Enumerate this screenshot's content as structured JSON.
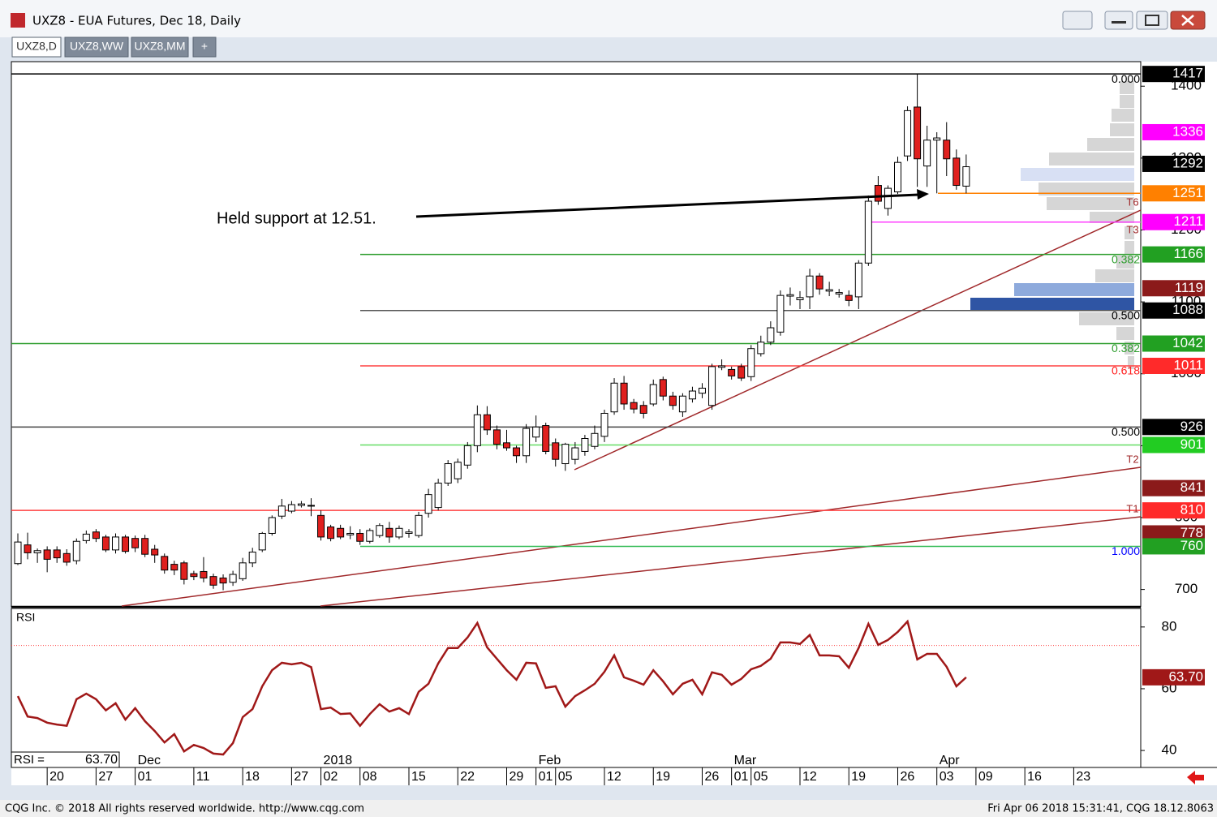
{
  "window": {
    "title": "UXZ8 - EUA Futures, Dec 18, Daily",
    "tabs": [
      "UXZ8,D",
      "UXZ8,WW",
      "UXZ8,MM",
      "+"
    ]
  },
  "chart_data": [
    {
      "type": "candlestick",
      "annotation": "Held support at 12.51.",
      "categories": [
        null,
        null,
        null,
        "20",
        null,
        null,
        null,
        null,
        "27",
        null,
        null,
        null,
        "01",
        null,
        null,
        null,
        null,
        null,
        "11",
        null,
        null,
        null,
        null,
        "18",
        null,
        null,
        null,
        null,
        "27",
        null,
        null,
        "02",
        null,
        null,
        null,
        "08",
        null,
        null,
        null,
        null,
        "15",
        null,
        null,
        null,
        null,
        "22",
        null,
        null,
        null,
        null,
        "29",
        null,
        null,
        "01",
        null,
        "05",
        null,
        null,
        null,
        null,
        "12",
        null,
        null,
        null,
        null,
        "19",
        null,
        null,
        null,
        null,
        "26",
        null,
        null,
        "01",
        null,
        "05",
        null,
        null,
        null,
        null,
        "12",
        null,
        null,
        null,
        null,
        "19",
        null,
        null,
        null,
        null,
        "26",
        null,
        null,
        null,
        "03",
        null,
        null,
        null,
        "09",
        null,
        null,
        null,
        null,
        "16",
        null,
        null,
        null,
        null,
        "23",
        null,
        null,
        null,
        null,
        null,
        null
      ],
      "month_labels": [
        null,
        null,
        null,
        null,
        null,
        null,
        null,
        null,
        null,
        null,
        null,
        null,
        "Dec",
        null,
        null,
        null,
        null,
        null,
        null,
        null,
        null,
        null,
        null,
        null,
        null,
        null,
        null,
        null,
        null,
        null,
        null,
        "2018",
        null,
        null,
        null,
        null,
        null,
        null,
        null,
        null,
        null,
        null,
        null,
        null,
        null,
        null,
        null,
        null,
        null,
        null,
        null,
        null,
        null,
        "Feb",
        null,
        null,
        null,
        null,
        null,
        null,
        null,
        null,
        null,
        null,
        null,
        null,
        null,
        null,
        null,
        null,
        null,
        null,
        null,
        "Mar",
        null,
        null,
        null,
        null,
        null,
        null,
        null,
        null,
        null,
        null,
        null,
        null,
        null,
        null,
        null,
        null,
        null,
        null,
        null,
        null,
        "Apr",
        null,
        null,
        null,
        null,
        null,
        null,
        null,
        null,
        null,
        null,
        null,
        null,
        null,
        null,
        null,
        null,
        null,
        null,
        null,
        null
      ],
      "open": [
        736,
        762,
        751,
        755,
        755,
        750,
        740,
        768,
        780,
        773,
        755,
        773,
        771,
        771,
        756,
        746,
        735,
        737,
        722,
        725,
        718,
        716,
        710,
        715,
        737,
        755,
        778,
        802,
        809,
        817,
        816,
        803,
        787,
        785,
        776,
        778,
        767,
        775,
        785,
        773,
        778,
        775,
        806,
        814,
        848,
        854,
        873,
        900,
        943,
        922,
        904,
        897,
        886,
        912,
        928,
        904,
        875,
        881,
        892,
        899,
        913,
        947,
        987,
        960,
        956,
        958,
        992,
        969,
        947,
        965,
        973,
        956,
        1009,
        1006,
        1010,
        996,
        1028,
        1044,
        1058,
        1108,
        1103,
        1107,
        1136,
        1115,
        1111,
        1109,
        1107,
        1154,
        1262,
        1230,
        1253,
        1303,
        1371,
        1289,
        1325,
        1325,
        1300,
        1261,
        null,
        null,
        null,
        null,
        null,
        null,
        null,
        null,
        null,
        null,
        null,
        null,
        null,
        null,
        null,
        null,
        null
      ],
      "high": [
        778,
        779,
        757,
        760,
        760,
        756,
        771,
        782,
        784,
        776,
        778,
        776,
        775,
        776,
        762,
        750,
        740,
        740,
        726,
        745,
        722,
        721,
        726,
        744,
        758,
        780,
        803,
        826,
        823,
        823,
        827,
        810,
        790,
        790,
        788,
        784,
        785,
        792,
        794,
        789,
        784,
        808,
        840,
        854,
        880,
        882,
        905,
        956,
        955,
        928,
        922,
        900,
        930,
        942,
        932,
        910,
        904,
        905,
        915,
        928,
        950,
        994,
        997,
        965,
        962,
        992,
        996,
        975,
        973,
        982,
        987,
        1014,
        1020,
        1010,
        1014,
        1040,
        1053,
        1073,
        1116,
        1120,
        1115,
        1146,
        1140,
        1128,
        1118,
        1116,
        1158,
        1248,
        1275,
        1262,
        1302,
        1372,
        1417,
        1345,
        1336,
        1350,
        1312,
        1305,
        null,
        null,
        null,
        null,
        null,
        null,
        null,
        null,
        null,
        null,
        null,
        null,
        null,
        null,
        null,
        null,
        null
      ],
      "low": [
        734,
        742,
        737,
        724,
        737,
        733,
        735,
        764,
        766,
        752,
        750,
        750,
        752,
        745,
        737,
        722,
        720,
        707,
        713,
        710,
        701,
        699,
        705,
        712,
        731,
        752,
        775,
        798,
        806,
        814,
        802,
        768,
        767,
        770,
        770,
        762,
        764,
        772,
        765,
        770,
        772,
        772,
        800,
        810,
        844,
        848,
        868,
        891,
        915,
        895,
        893,
        876,
        876,
        905,
        888,
        871,
        865,
        874,
        886,
        895,
        905,
        943,
        950,
        945,
        938,
        955,
        963,
        950,
        940,
        960,
        966,
        950,
        1005,
        992,
        990,
        990,
        1024,
        1040,
        1053,
        1095,
        1090,
        1090,
        1110,
        1108,
        1106,
        1094,
        1090,
        1150,
        1235,
        1220,
        1250,
        1296,
        1260,
        1260,
        1251,
        1275,
        1256,
        1251,
        null,
        null,
        null,
        null,
        null,
        null,
        null,
        null,
        null,
        null,
        null,
        null,
        null,
        null,
        null,
        null,
        null
      ],
      "close": [
        766,
        751,
        754,
        742,
        744,
        738,
        767,
        777,
        771,
        755,
        773,
        753,
        758,
        749,
        748,
        727,
        727,
        714,
        718,
        716,
        706,
        709,
        721,
        737,
        752,
        778,
        800,
        816,
        818,
        819,
        817,
        773,
        771,
        773,
        778,
        767,
        782,
        789,
        773,
        785,
        780,
        803,
        832,
        848,
        875,
        877,
        900,
        943,
        922,
        902,
        897,
        886,
        924,
        926,
        892,
        881,
        902,
        897,
        910,
        917,
        945,
        987,
        958,
        951,
        945,
        985,
        969,
        956,
        969,
        976,
        980,
        1010,
        1011,
        997,
        994,
        1035,
        1044,
        1064,
        1109,
        1110,
        1106,
        1136,
        1118,
        1117,
        1113,
        1102,
        1154,
        1240,
        1240,
        1258,
        1294,
        1366,
        1299,
        1325,
        1328,
        1299,
        1262,
        1288,
        null,
        null,
        null,
        null,
        null,
        null,
        null,
        null,
        null,
        null,
        null,
        null,
        null,
        null,
        null,
        null,
        null
      ],
      "up_color": "#ffffff",
      "down_color": "#e0201e",
      "ylim": [
        677,
        1433
      ],
      "yticks": [
        700,
        800,
        900,
        1000,
        1100,
        1200,
        1300,
        1400
      ],
      "lines": [
        {
          "value": 1417,
          "color": "#000000",
          "label": "0.000",
          "label_color": "#000000",
          "span": "full"
        },
        {
          "value": 1251,
          "color": "#ff8000",
          "span": "support"
        },
        {
          "value": 1211,
          "color": "#ff40ff",
          "span": "target"
        },
        {
          "value": 1166,
          "color": "#2e9e2e",
          "label": "0.382",
          "label_color": "#2e9e2e",
          "span": "fib"
        },
        {
          "value": 1088,
          "color": "#555555",
          "label": "0.500",
          "label_color": "#000000",
          "span": "fib"
        },
        {
          "value": 1042,
          "color": "#2e9e2e",
          "label": "0.382",
          "label_color": "#2e9e2e",
          "span": "full"
        },
        {
          "value": 1011,
          "color": "#ff4040",
          "label": "0.618",
          "label_color": "#ff2020",
          "span": "fib"
        },
        {
          "value": 926,
          "color": "#444444",
          "label": "0.500",
          "label_color": "#000000",
          "span": "full"
        },
        {
          "value": 901,
          "color": "#66dd66",
          "span": "fib"
        },
        {
          "value": 810,
          "color": "#ff4040",
          "span": "full"
        },
        {
          "value": 760,
          "color": "#33bb55",
          "label": "1.000",
          "label_color": "#0000ff",
          "span": "fib"
        }
      ],
      "price_markers": [
        {
          "value": 1417,
          "color": "#000000"
        },
        {
          "value": 1336,
          "color": "#ff00ff"
        },
        {
          "value": 1292,
          "color": "#000000"
        },
        {
          "value": 1251,
          "color": "#ff8000"
        },
        {
          "value": 1211,
          "color": "#ff00ff"
        },
        {
          "value": 1166,
          "color": "#22a022"
        },
        {
          "value": 1119,
          "color": "#8b1a1a"
        },
        {
          "value": 1088,
          "color": "#000000"
        },
        {
          "value": 1042,
          "color": "#22a022"
        },
        {
          "value": 1011,
          "color": "#ff2a2a"
        },
        {
          "value": 926,
          "color": "#000000"
        },
        {
          "value": 901,
          "color": "#22cc22"
        },
        {
          "value": 841,
          "color": "#8b1a1a"
        },
        {
          "value": 810,
          "color": "#ff2a2a"
        },
        {
          "value": 778,
          "color": "#8b1a1a"
        },
        {
          "value": 760,
          "color": "#22a022"
        }
      ],
      "trend_labels": [
        "T6",
        "T3",
        "T2",
        "T1"
      ]
    },
    {
      "type": "line",
      "title": "RSI",
      "readout_label": "RSI =",
      "color": "#a01818",
      "values": [
        57.6,
        51,
        50.5,
        49,
        48.4,
        48,
        56.6,
        58.4,
        56.6,
        53,
        55.3,
        50,
        53.7,
        49.5,
        46.3,
        42.6,
        45.3,
        39.7,
        41.8,
        40.8,
        39,
        38.7,
        42.4,
        50.8,
        53.4,
        60.8,
        66,
        68.4,
        67.9,
        68.4,
        67,
        53.4,
        53.9,
        51.8,
        52,
        48,
        51.8,
        55,
        52.6,
        53.7,
        51.8,
        59,
        61.6,
        68.2,
        73.2,
        73.2,
        76.6,
        81.3,
        73.4,
        69.7,
        66,
        62.9,
        68.4,
        68.2,
        60.3,
        60.8,
        54.2,
        57.6,
        59.5,
        61.6,
        65.5,
        70.8,
        63.7,
        62.6,
        61.3,
        66,
        62.4,
        58.2,
        61.6,
        62.9,
        58.2,
        65.3,
        64.5,
        61.3,
        63.2,
        66.3,
        67.4,
        69.7,
        75,
        75,
        74.5,
        77.4,
        70.8,
        70.8,
        70.5,
        66.8,
        73.2,
        81,
        74.2,
        75.8,
        78.4,
        81.8,
        69.5,
        71.3,
        71.3,
        67.1,
        60.8,
        63.7
      ],
      "value_labels": [
        null,
        null,
        null,
        null,
        null,
        null,
        null,
        null,
        null,
        null,
        null,
        null,
        null,
        null,
        null,
        null,
        null,
        null,
        null,
        null,
        null,
        null,
        null,
        null,
        null,
        null,
        null,
        null,
        null,
        null,
        null,
        null,
        null,
        null,
        null,
        null,
        null,
        null,
        null,
        null,
        null,
        null,
        null,
        null,
        null,
        null,
        null,
        null,
        null,
        null,
        null,
        null,
        null,
        null,
        null,
        null,
        null,
        null,
        null,
        null,
        null,
        null,
        null,
        null,
        null,
        null,
        null,
        null,
        null,
        null,
        null,
        null,
        null,
        null,
        null,
        null,
        null,
        null,
        null,
        null,
        null,
        null,
        null,
        null,
        null,
        null,
        null,
        null,
        null,
        null,
        null,
        null,
        null,
        null,
        null,
        null,
        null,
        "63.70"
      ],
      "ylim": [
        34.5,
        86
      ],
      "yticks": [
        40,
        60,
        80
      ],
      "reference_line": 74
    }
  ],
  "footer": {
    "left": "CQG Inc. © 2018 All rights reserved worldwide. http://www.cqg.com",
    "right": "Fri Apr 06 2018 15:31:41, CQG 18.12.8063"
  }
}
